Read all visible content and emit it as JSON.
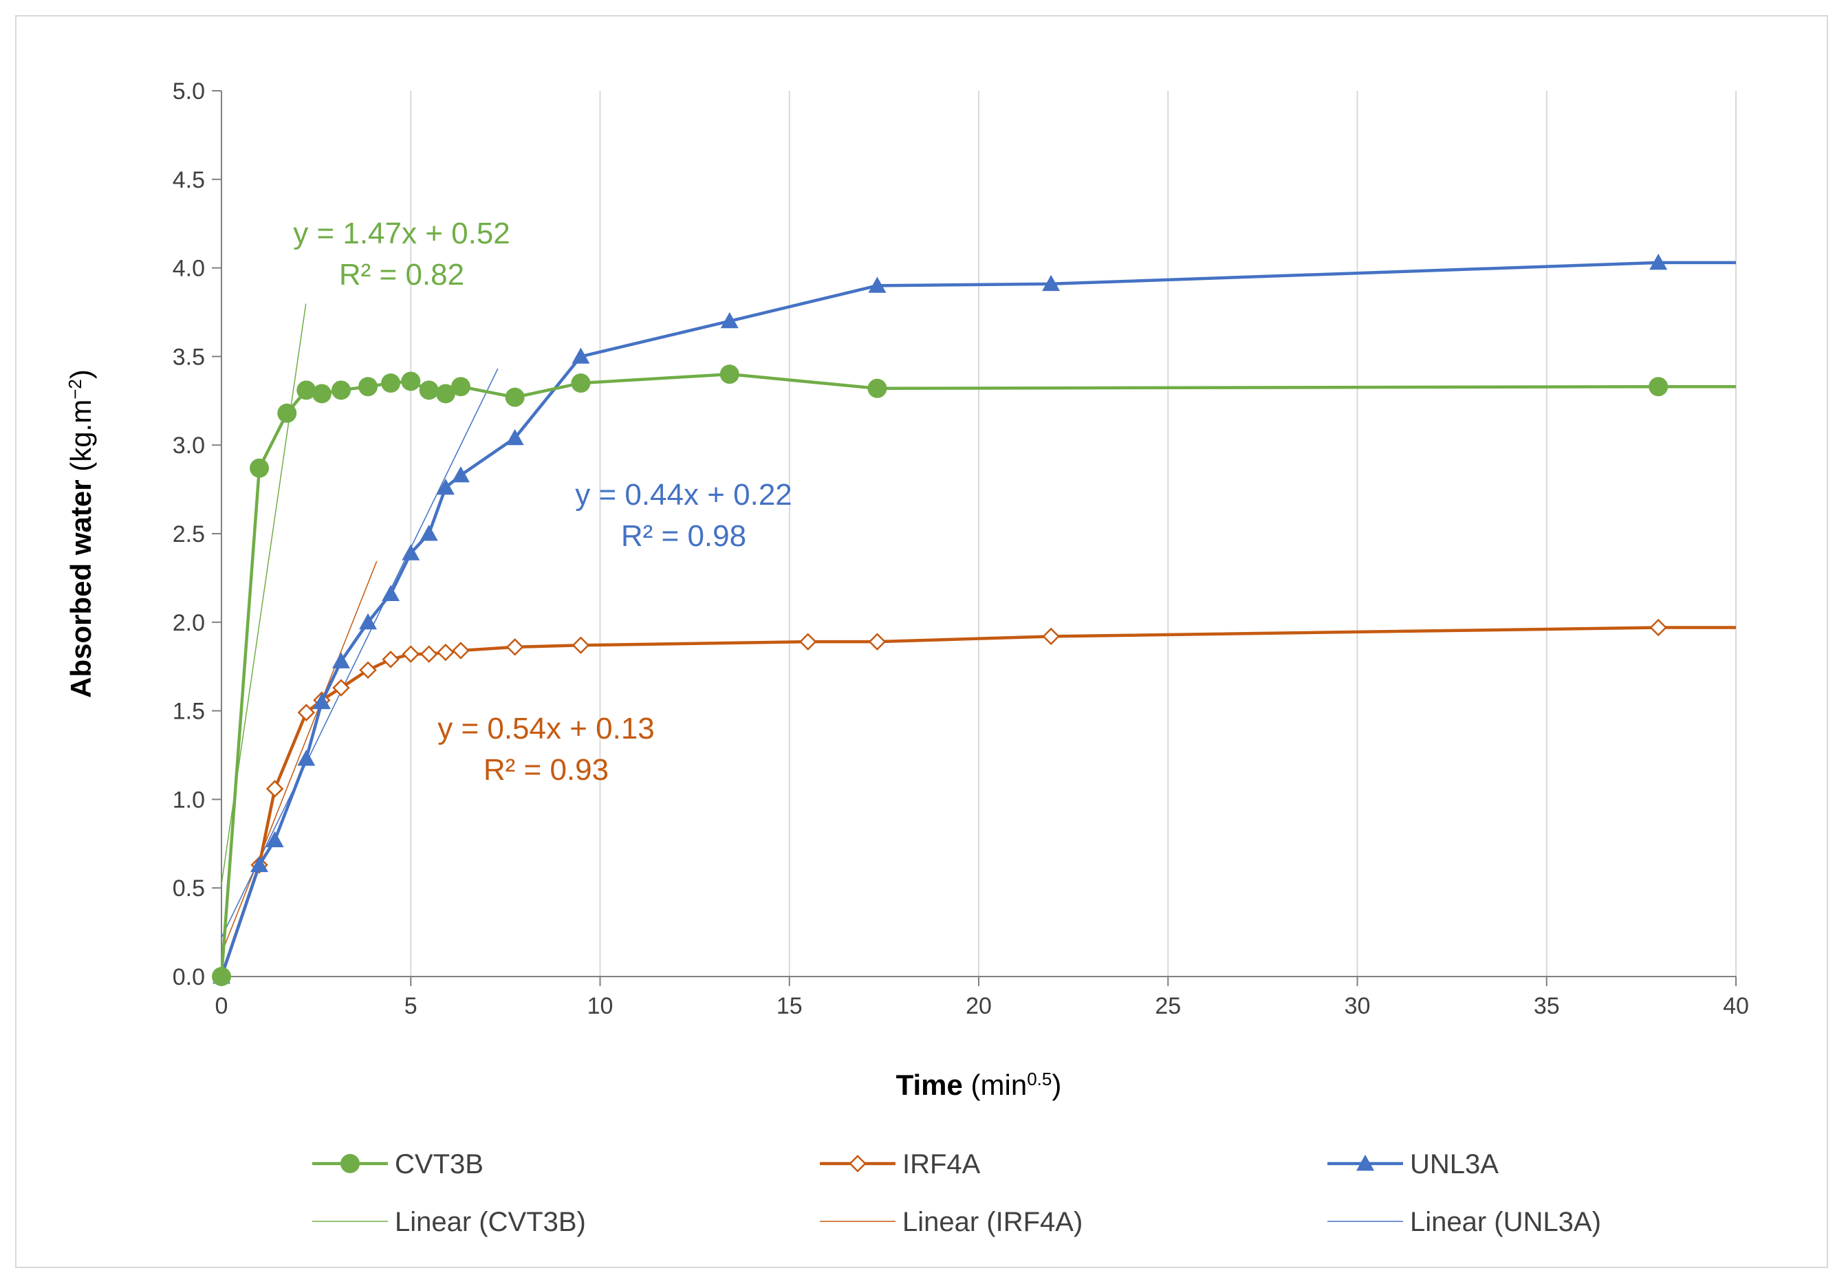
{
  "chart_data": {
    "type": "scatter",
    "title": "",
    "xlabel": {
      "bold": "Time",
      "unit_base": "(min",
      "unit_sup": "0.5",
      "unit_end": ")"
    },
    "ylabel": {
      "bold": "Absorbed water",
      "unit_base": "(kg.m",
      "unit_sup": "−2",
      "unit_end": ")"
    },
    "xlim": [
      0,
      40
    ],
    "ylim": [
      0,
      5
    ],
    "x_ticks": [
      0,
      5,
      10,
      15,
      20,
      25,
      30,
      35,
      40
    ],
    "x_tick_labels": [
      "0",
      "5",
      "10",
      "15",
      "20",
      "25",
      "30",
      "35",
      "40"
    ],
    "y_ticks": [
      0,
      0.5,
      1,
      1.5,
      2,
      2.5,
      3,
      3.5,
      4,
      4.5,
      5
    ],
    "y_tick_labels": [
      "0.0",
      "0.5",
      "1.0",
      "1.5",
      "2.0",
      "2.5",
      "3.0",
      "3.5",
      "4.0",
      "4.5",
      "5.0"
    ],
    "grid": {
      "vertical": true,
      "horizontal": false
    },
    "legend_position": "bottom",
    "series": [
      {
        "name": "CVT3B",
        "color": "#70ad47",
        "marker": "circle",
        "x": [
          0,
          1,
          1.73,
          2.24,
          2.65,
          3.16,
          3.87,
          4.47,
          5,
          5.48,
          5.92,
          6.32,
          7.75,
          9.49,
          13.42,
          17.32,
          37.95,
          40
        ],
        "y": [
          0,
          2.87,
          3.18,
          3.31,
          3.29,
          3.31,
          3.33,
          3.35,
          3.36,
          3.31,
          3.29,
          3.33,
          3.27,
          3.35,
          3.4,
          3.32,
          3.33,
          3.33
        ],
        "marker_count": 17,
        "trend": {
          "label": "Linear (CVT3B)",
          "slope": 1.47,
          "intercept": 0.52,
          "x_range": [
            0,
            2.23
          ],
          "equation": "y = 1.47x + 0.52",
          "r2": "R² = 0.82"
        }
      },
      {
        "name": "IRF4A",
        "color": "#c55a11",
        "marker": "diamond-open",
        "x": [
          0,
          1,
          1.41,
          2.24,
          2.65,
          3.16,
          3.87,
          4.47,
          5,
          5.48,
          5.92,
          6.32,
          7.75,
          9.49,
          15.49,
          17.32,
          21.91,
          37.95,
          40
        ],
        "y": [
          0,
          0.63,
          1.06,
          1.49,
          1.56,
          1.63,
          1.73,
          1.79,
          1.82,
          1.82,
          1.83,
          1.84,
          1.86,
          1.87,
          1.89,
          1.89,
          1.92,
          1.97,
          1.97
        ],
        "marker_count": 18,
        "trend": {
          "label": "Linear (IRF4A)",
          "slope": 0.54,
          "intercept": 0.13,
          "x_range": [
            0,
            4.1
          ],
          "equation": "y = 0.54x + 0.13",
          "r2": "R² = 0.93"
        }
      },
      {
        "name": "UNL3A",
        "color": "#4472c4",
        "marker": "triangle",
        "x": [
          0,
          1,
          1.41,
          2.24,
          2.65,
          3.16,
          3.87,
          4.47,
          5,
          5.48,
          5.92,
          6.32,
          7.75,
          9.49,
          13.42,
          17.32,
          21.91,
          37.95,
          40
        ],
        "y": [
          0,
          0.63,
          0.77,
          1.23,
          1.55,
          1.78,
          2.0,
          2.16,
          2.39,
          2.5,
          2.76,
          2.83,
          3.04,
          3.5,
          3.7,
          3.9,
          3.91,
          4.03,
          4.03
        ],
        "marker_count": 18,
        "trend": {
          "label": "Linear (UNL3A)",
          "slope": 0.44,
          "intercept": 0.22,
          "x_range": [
            0,
            7.3
          ],
          "equation": "y = 0.44x + 0.22",
          "r2": "R² = 0.98"
        }
      }
    ]
  }
}
